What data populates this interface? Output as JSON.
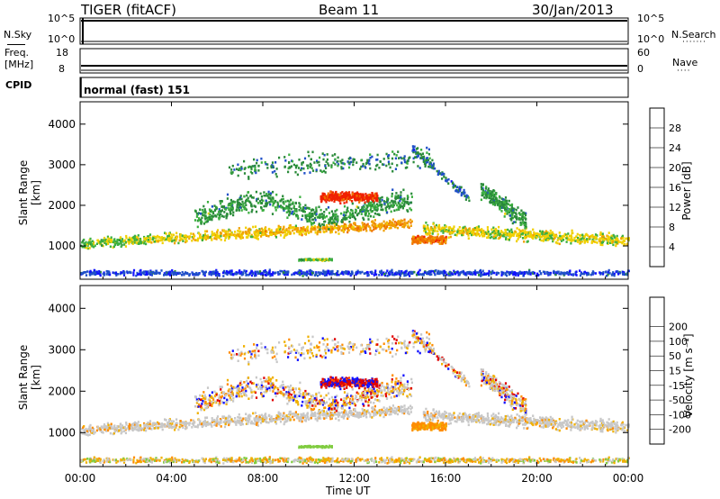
{
  "header": {
    "site": "TIGER (fitACF)",
    "beam": "Beam 11",
    "date": "30/Jan/2013"
  },
  "strips": {
    "nsky_label": "N.Sky",
    "nsearch_label": "N.Search",
    "nsky_ticks": [
      "10^5",
      "10^0"
    ],
    "nsearch_ticks": [
      "10^5",
      "10^0"
    ],
    "freq_label_1": "Freq.",
    "freq_label_2": "[MHz]",
    "freq_ticks": [
      "18",
      "8"
    ],
    "nave_label": "Nave",
    "nave_ticks": [
      "60",
      "0"
    ],
    "cpid_label": "CPID",
    "cpid_value": "normal (fast) 151"
  },
  "colors": {
    "power": [
      "#1010ff",
      "#2050c8",
      "#2a8a3a",
      "#3cb040",
      "#f0d000",
      "#f0a000",
      "#f07000",
      "#f02000"
    ],
    "velocity": [
      "#e00000",
      "#ff5000",
      "#ff8c00",
      "#f0b000",
      "#c8c8c8",
      "#c8c8c8",
      "#80cc40",
      "#3c8a40",
      "#1040b0",
      "#1010ff"
    ]
  },
  "chart_data": [
    {
      "type": "heatmap",
      "title": "",
      "xlabel": "Time UT",
      "ylabel": "Slant Range [km]",
      "x_ticks": [
        "00:00",
        "04:00",
        "08:00",
        "12:00",
        "16:00",
        "20:00",
        "00:00"
      ],
      "y_ticks": [
        "1000",
        "2000",
        "3000",
        "4000"
      ],
      "x_range_hours": [
        0,
        24
      ],
      "y_range_km": [
        180,
        4550
      ],
      "colorbar_label": "Power [dB]",
      "colorbar_ticks": [
        "4",
        "8",
        "12",
        "16",
        "20",
        "24",
        "28"
      ],
      "colorbar_range": [
        0,
        32
      ]
    },
    {
      "type": "heatmap",
      "title": "",
      "xlabel": "Time UT",
      "ylabel": "Slant Range [km]",
      "x_ticks": [
        "00:00",
        "04:00",
        "08:00",
        "12:00",
        "16:00",
        "20:00",
        "00:00"
      ],
      "y_ticks": [
        "1000",
        "2000",
        "3000",
        "4000"
      ],
      "x_range_hours": [
        0,
        24
      ],
      "y_range_km": [
        180,
        4550
      ],
      "colorbar_label": "Velocity [m s⁻¹]",
      "colorbar_ticks": [
        "-200",
        "-100",
        "-50",
        "-15",
        "15",
        "50",
        "100",
        "200"
      ]
    }
  ]
}
